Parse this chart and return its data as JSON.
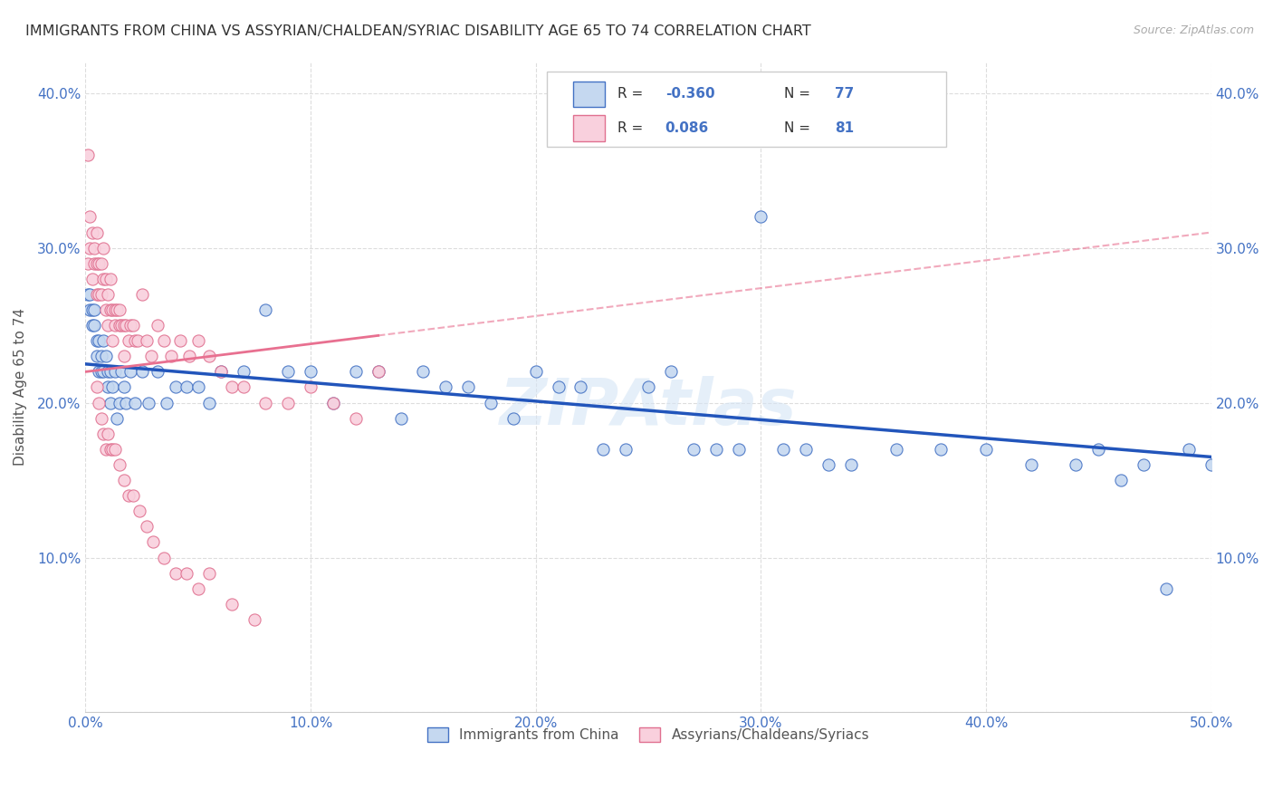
{
  "title": "IMMIGRANTS FROM CHINA VS ASSYRIAN/CHALDEAN/SYRIAC DISABILITY AGE 65 TO 74 CORRELATION CHART",
  "source": "Source: ZipAtlas.com",
  "ylabel": "Disability Age 65 to 74",
  "xlim": [
    0.0,
    0.5
  ],
  "ylim": [
    0.0,
    0.42
  ],
  "title_color": "#333333",
  "source_color": "#999999",
  "tick_color": "#4472c4",
  "grid_color": "#dddddd",
  "china_color": "#c5d8f0",
  "china_edge": "#4472c4",
  "assyrian_color": "#f9d0dd",
  "assyrian_edge": "#e07090",
  "china_line_color": "#2255bb",
  "assyrian_line_color": "#e87090",
  "legend_china_label": "Immigrants from China",
  "legend_assyrian_label": "Assyrians/Chaldeans/Syriacs",
  "R_china": -0.36,
  "N_china": 77,
  "R_assyrian": 0.086,
  "N_assyrian": 81,
  "background_color": "#ffffff",
  "china_x": [
    0.001,
    0.002,
    0.002,
    0.003,
    0.003,
    0.004,
    0.004,
    0.005,
    0.005,
    0.006,
    0.006,
    0.007,
    0.007,
    0.008,
    0.008,
    0.009,
    0.01,
    0.01,
    0.011,
    0.011,
    0.012,
    0.013,
    0.014,
    0.015,
    0.016,
    0.017,
    0.018,
    0.02,
    0.022,
    0.025,
    0.028,
    0.032,
    0.036,
    0.04,
    0.045,
    0.05,
    0.055,
    0.06,
    0.07,
    0.08,
    0.09,
    0.1,
    0.11,
    0.12,
    0.13,
    0.14,
    0.15,
    0.16,
    0.17,
    0.18,
    0.19,
    0.2,
    0.21,
    0.22,
    0.23,
    0.24,
    0.25,
    0.26,
    0.27,
    0.28,
    0.29,
    0.3,
    0.31,
    0.32,
    0.33,
    0.34,
    0.36,
    0.38,
    0.4,
    0.42,
    0.44,
    0.45,
    0.46,
    0.47,
    0.48,
    0.49,
    0.5
  ],
  "china_y": [
    0.27,
    0.26,
    0.27,
    0.26,
    0.25,
    0.26,
    0.25,
    0.23,
    0.24,
    0.24,
    0.22,
    0.23,
    0.22,
    0.24,
    0.22,
    0.23,
    0.22,
    0.21,
    0.22,
    0.2,
    0.21,
    0.22,
    0.19,
    0.2,
    0.22,
    0.21,
    0.2,
    0.22,
    0.2,
    0.22,
    0.2,
    0.22,
    0.2,
    0.21,
    0.21,
    0.21,
    0.2,
    0.22,
    0.22,
    0.26,
    0.22,
    0.22,
    0.2,
    0.22,
    0.22,
    0.19,
    0.22,
    0.21,
    0.21,
    0.2,
    0.19,
    0.22,
    0.21,
    0.21,
    0.17,
    0.17,
    0.21,
    0.22,
    0.17,
    0.17,
    0.17,
    0.32,
    0.17,
    0.17,
    0.16,
    0.16,
    0.17,
    0.17,
    0.17,
    0.16,
    0.16,
    0.17,
    0.15,
    0.16,
    0.08,
    0.17,
    0.16
  ],
  "assyrian_x": [
    0.001,
    0.001,
    0.002,
    0.002,
    0.003,
    0.003,
    0.004,
    0.004,
    0.005,
    0.005,
    0.005,
    0.006,
    0.006,
    0.007,
    0.007,
    0.008,
    0.008,
    0.009,
    0.009,
    0.01,
    0.01,
    0.011,
    0.011,
    0.012,
    0.012,
    0.013,
    0.013,
    0.014,
    0.015,
    0.015,
    0.016,
    0.017,
    0.017,
    0.018,
    0.019,
    0.02,
    0.021,
    0.022,
    0.023,
    0.025,
    0.027,
    0.029,
    0.032,
    0.035,
    0.038,
    0.042,
    0.046,
    0.05,
    0.055,
    0.06,
    0.065,
    0.07,
    0.08,
    0.09,
    0.1,
    0.11,
    0.12,
    0.13,
    0.005,
    0.006,
    0.007,
    0.008,
    0.009,
    0.01,
    0.011,
    0.012,
    0.013,
    0.015,
    0.017,
    0.019,
    0.021,
    0.024,
    0.027,
    0.03,
    0.035,
    0.04,
    0.045,
    0.05,
    0.055,
    0.065,
    0.075
  ],
  "assyrian_y": [
    0.36,
    0.29,
    0.32,
    0.3,
    0.31,
    0.28,
    0.3,
    0.29,
    0.31,
    0.29,
    0.27,
    0.29,
    0.27,
    0.29,
    0.27,
    0.3,
    0.28,
    0.28,
    0.26,
    0.27,
    0.25,
    0.28,
    0.26,
    0.26,
    0.24,
    0.26,
    0.25,
    0.26,
    0.26,
    0.25,
    0.25,
    0.25,
    0.23,
    0.25,
    0.24,
    0.25,
    0.25,
    0.24,
    0.24,
    0.27,
    0.24,
    0.23,
    0.25,
    0.24,
    0.23,
    0.24,
    0.23,
    0.24,
    0.23,
    0.22,
    0.21,
    0.21,
    0.2,
    0.2,
    0.21,
    0.2,
    0.19,
    0.22,
    0.21,
    0.2,
    0.19,
    0.18,
    0.17,
    0.18,
    0.17,
    0.17,
    0.17,
    0.16,
    0.15,
    0.14,
    0.14,
    0.13,
    0.12,
    0.11,
    0.1,
    0.09,
    0.09,
    0.08,
    0.09,
    0.07,
    0.06
  ]
}
